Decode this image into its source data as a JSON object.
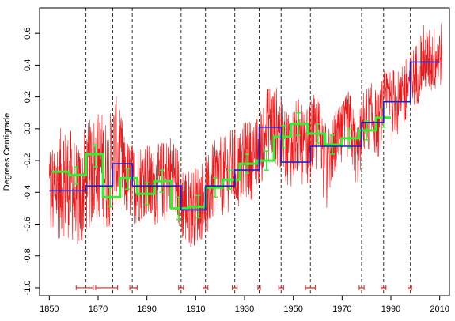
{
  "chart_data": {
    "type": "line",
    "title": "",
    "xlabel": "",
    "ylabel": "Degrees Centigrade",
    "xlim": [
      1846,
      2014
    ],
    "ylim": [
      -1.05,
      0.76
    ],
    "x_ticks": [
      1850,
      1870,
      1890,
      1910,
      1930,
      1950,
      1970,
      1990,
      2010
    ],
    "x_tick_labels": [
      "1850",
      "1870",
      "1890",
      "1910",
      "1930",
      "1950",
      "1970",
      "1990",
      "2010"
    ],
    "y_ticks": [
      -1.0,
      -0.8,
      -0.6,
      -0.4,
      -0.2,
      0.0,
      0.2,
      0.4,
      0.6
    ],
    "y_tick_labels": [
      "-1.0",
      "-0.8",
      "-0.6",
      "-0.4",
      "-0.2",
      "0.0",
      "0.2",
      "0.4",
      "0.6"
    ],
    "grid": false,
    "legend": "none",
    "breakpoints": [
      1865,
      1876,
      1884,
      1904,
      1914,
      1926,
      1936,
      1945,
      1957,
      1978,
      1987,
      1998
    ],
    "breakpoint_intervals": [
      {
        "x": 1865,
        "lo": 1861,
        "hi": 1868
      },
      {
        "x": 1876,
        "lo": 1869,
        "hi": 1878
      },
      {
        "x": 1884,
        "lo": 1883,
        "hi": 1886
      },
      {
        "x": 1904,
        "lo": 1903,
        "hi": 1905
      },
      {
        "x": 1914,
        "lo": 1913,
        "hi": 1915
      },
      {
        "x": 1926,
        "lo": 1925,
        "hi": 1927
      },
      {
        "x": 1936,
        "lo": 1935.5,
        "hi": 1936.5
      },
      {
        "x": 1945,
        "lo": 1944,
        "hi": 1946
      },
      {
        "x": 1957,
        "lo": 1955,
        "hi": 1959
      },
      {
        "x": 1978,
        "lo": 1977,
        "hi": 1979
      },
      {
        "x": 1987,
        "lo": 1986,
        "hi": 1988
      },
      {
        "x": 1998,
        "lo": 1997,
        "hi": 1998.5
      }
    ],
    "series": [
      {
        "kind": "monthly-anomaly",
        "color": "#e41a1c",
        "x": [
          1850,
          1853,
          1856,
          1859,
          1862,
          1865,
          1868,
          1871,
          1874,
          1877,
          1880,
          1883,
          1886,
          1889,
          1892,
          1895,
          1898,
          1901,
          1904,
          1907,
          1910,
          1913,
          1916,
          1919,
          1922,
          1925,
          1928,
          1931,
          1934,
          1937,
          1940,
          1943,
          1946,
          1949,
          1952,
          1955,
          1958,
          1961,
          1964,
          1967,
          1970,
          1973,
          1976,
          1979,
          1982,
          1985,
          1988,
          1991,
          1994,
          1997,
          2000,
          2003,
          2006,
          2009,
          2011
        ],
        "y": [
          -0.42,
          -0.36,
          -0.33,
          -0.35,
          -0.45,
          -0.32,
          -0.26,
          -0.22,
          -0.3,
          -0.12,
          -0.28,
          -0.33,
          -0.36,
          -0.3,
          -0.38,
          -0.34,
          -0.3,
          -0.27,
          -0.45,
          -0.5,
          -0.48,
          -0.44,
          -0.36,
          -0.3,
          -0.3,
          -0.24,
          -0.26,
          -0.18,
          -0.21,
          -0.1,
          0.05,
          0.02,
          -0.08,
          -0.12,
          -0.05,
          -0.15,
          -0.04,
          -0.02,
          -0.22,
          -0.1,
          -0.05,
          0.05,
          -0.18,
          0.05,
          0.08,
          0.02,
          0.2,
          0.18,
          0.15,
          0.3,
          0.32,
          0.45,
          0.42,
          0.45,
          0.48
        ],
        "noise_amplitude": 0.28
      },
      {
        "kind": "step-mean",
        "color": "#1f1fcf",
        "segments": [
          {
            "x0": 1850,
            "x1": 1865,
            "y": -0.39
          },
          {
            "x0": 1865,
            "x1": 1876,
            "y": -0.36
          },
          {
            "x0": 1876,
            "x1": 1884,
            "y": -0.22
          },
          {
            "x0": 1884,
            "x1": 1904,
            "y": -0.36
          },
          {
            "x0": 1904,
            "x1": 1914,
            "y": -0.51
          },
          {
            "x0": 1914,
            "x1": 1926,
            "y": -0.36
          },
          {
            "x0": 1926,
            "x1": 1936,
            "y": -0.26
          },
          {
            "x0": 1936,
            "x1": 1945,
            "y": 0.01
          },
          {
            "x0": 1945,
            "x1": 1957,
            "y": -0.21
          },
          {
            "x0": 1957,
            "x1": 1978,
            "y": -0.11
          },
          {
            "x0": 1978,
            "x1": 1987,
            "y": 0.04
          },
          {
            "x0": 1987,
            "x1": 1998,
            "y": 0.17
          },
          {
            "x0": 1998,
            "x1": 2010,
            "y": 0.42
          }
        ]
      },
      {
        "kind": "step-mean",
        "color": "#33ee33",
        "segments": [
          {
            "x0": 1851,
            "x1": 1858,
            "y": -0.27
          },
          {
            "x0": 1858,
            "x1": 1865,
            "y": -0.29
          },
          {
            "x0": 1865,
            "x1": 1872,
            "y": -0.16
          },
          {
            "x0": 1872,
            "x1": 1879,
            "y": -0.43
          },
          {
            "x0": 1879,
            "x1": 1886,
            "y": -0.31
          },
          {
            "x0": 1886,
            "x1": 1893,
            "y": -0.41
          },
          {
            "x0": 1893,
            "x1": 1900,
            "y": -0.33
          },
          {
            "x0": 1900,
            "x1": 1907,
            "y": -0.5
          },
          {
            "x0": 1907,
            "x1": 1914,
            "y": -0.49
          },
          {
            "x0": 1914,
            "x1": 1921,
            "y": -0.37
          },
          {
            "x0": 1921,
            "x1": 1928,
            "y": -0.32
          },
          {
            "x0": 1928,
            "x1": 1935,
            "y": -0.22
          },
          {
            "x0": 1935,
            "x1": 1942,
            "y": -0.2
          },
          {
            "x0": 1942,
            "x1": 1949,
            "y": -0.05
          },
          {
            "x0": 1949,
            "x1": 1956,
            "y": 0.03
          },
          {
            "x0": 1956,
            "x1": 1963,
            "y": -0.03
          },
          {
            "x0": 1963,
            "x1": 1970,
            "y": -0.1
          },
          {
            "x0": 1970,
            "x1": 1977,
            "y": -0.06
          },
          {
            "x0": 1977,
            "x1": 1984,
            "y": -0.01
          },
          {
            "x0": 1984,
            "x1": 1990,
            "y": 0.07
          }
        ],
        "error_bars": [
          {
            "x": 1861,
            "lo": -0.35,
            "hi": -0.24
          },
          {
            "x": 1869,
            "lo": -0.24,
            "hi": -0.1
          },
          {
            "x": 1875,
            "lo": -0.49,
            "hi": -0.37
          },
          {
            "x": 1882,
            "lo": -0.38,
            "hi": -0.25
          },
          {
            "x": 1890,
            "lo": -0.48,
            "hi": -0.34
          },
          {
            "x": 1896,
            "lo": -0.4,
            "hi": -0.26
          },
          {
            "x": 1903,
            "lo": -0.57,
            "hi": -0.43
          },
          {
            "x": 1911,
            "lo": -0.56,
            "hi": -0.42
          },
          {
            "x": 1918,
            "lo": -0.43,
            "hi": -0.31
          },
          {
            "x": 1924,
            "lo": -0.38,
            "hi": -0.26
          },
          {
            "x": 1931,
            "lo": -0.28,
            "hi": -0.16
          },
          {
            "x": 1939,
            "lo": -0.26,
            "hi": -0.14
          },
          {
            "x": 1946,
            "lo": -0.12,
            "hi": 0.02
          },
          {
            "x": 1952,
            "lo": -0.04,
            "hi": 0.1
          },
          {
            "x": 1960,
            "lo": -0.09,
            "hi": 0.03
          },
          {
            "x": 1966,
            "lo": -0.16,
            "hi": -0.04
          },
          {
            "x": 1973,
            "lo": -0.12,
            "hi": 0.0
          },
          {
            "x": 1980,
            "lo": -0.07,
            "hi": 0.05
          },
          {
            "x": 1987,
            "lo": 0.01,
            "hi": 0.13
          }
        ]
      }
    ]
  }
}
